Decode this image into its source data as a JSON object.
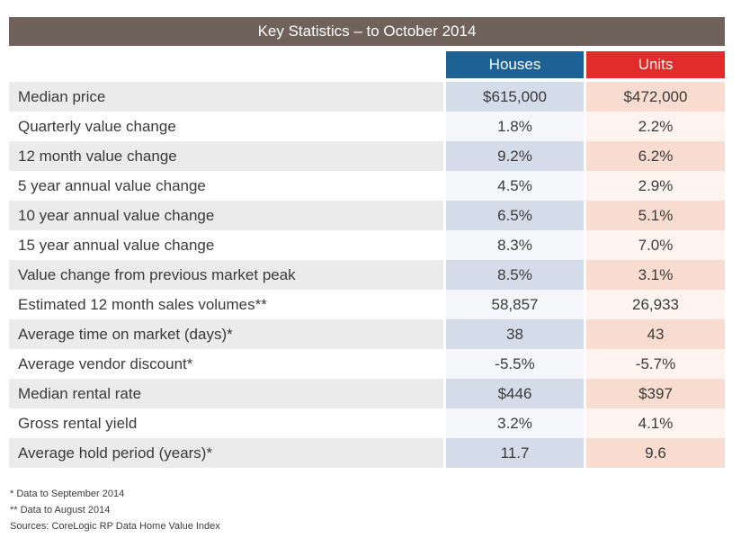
{
  "title": "Key Statistics – to October 2014",
  "columns": {
    "houses": "Houses",
    "units": "Units"
  },
  "rows": [
    {
      "label": "Median price",
      "houses": "$615,000",
      "units": "$472,000"
    },
    {
      "label": "Quarterly value change",
      "houses": "1.8%",
      "units": "2.2%"
    },
    {
      "label": "12 month value change",
      "houses": "9.2%",
      "units": "6.2%"
    },
    {
      "label": "5 year annual value change",
      "houses": "4.5%",
      "units": "2.9%"
    },
    {
      "label": "10 year annual value change",
      "houses": "6.5%",
      "units": "5.1%"
    },
    {
      "label": "15 year annual value change",
      "houses": "8.3%",
      "units": "7.0%"
    },
    {
      "label": "Value change from previous market peak",
      "houses": "8.5%",
      "units": "3.1%"
    },
    {
      "label": "Estimated 12 month sales volumes**",
      "houses": "58,857",
      "units": "26,933"
    },
    {
      "label": "Average time on market (days)*",
      "houses": "38",
      "units": "43"
    },
    {
      "label": "Average vendor discount*",
      "houses": "-5.5%",
      "units": "-5.7%"
    },
    {
      "label": "Median rental rate",
      "houses": "$446",
      "units": "$397"
    },
    {
      "label": "Gross rental yield",
      "houses": "3.2%",
      "units": "4.1%"
    },
    {
      "label": "Average hold period (years)*",
      "houses": "11.7",
      "units": "9.6"
    }
  ],
  "footnotes": [
    "* Data to September 2014",
    "** Data to August 2014",
    "Sources: CoreLogic RP Data Home Value Index"
  ],
  "colors": {
    "title_bar": "#6e625a",
    "houses_header": "#1e6194",
    "units_header": "#e22b2b"
  }
}
